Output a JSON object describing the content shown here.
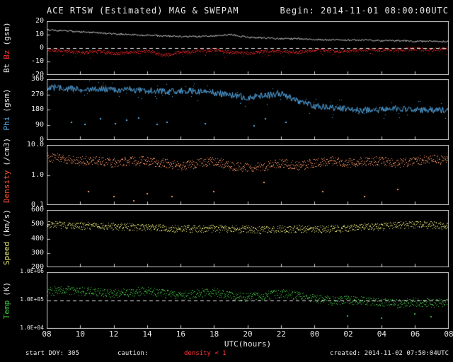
{
  "header": {
    "title": "ACE RTSW (Estimated) MAG & SWEPAM",
    "begin_label": "Begin: 2014-11-01 08:00:00UTC"
  },
  "footer": {
    "start": "start DOY: 305",
    "caution": "caution:",
    "density_warning": "density < 1",
    "created": "created: 2014-11-02 07:50:04UTC"
  },
  "colors": {
    "background": "#000000",
    "frame": "#cfcfcf",
    "text": "#e8e8e8",
    "bt": "#e8e8e8",
    "bz": "#cc2222",
    "bz_label": "#ff3333",
    "phi": "#58b0f0",
    "density": "#ff9966",
    "density_label": "#ff5533",
    "speed": "#e8e878",
    "temp": "#3fbf3f"
  },
  "chart_data": {
    "type": "line",
    "title": "ACE RTSW (Estimated) MAG & SWEPAM",
    "xlabel": "UTC(hours)",
    "x_start_hour": 8,
    "x_span_hours": 24,
    "xtick_labels": [
      "08",
      "10",
      "12",
      "14",
      "16",
      "18",
      "20",
      "22",
      "00",
      "02",
      "04",
      "06",
      "08"
    ],
    "panels": [
      {
        "id": "mag",
        "label_parts": [
          {
            "text": "Bt",
            "color": "#e8e8e8"
          },
          {
            "text": "Bz",
            "color": "#ff3333"
          },
          {
            "text": "(gsm)",
            "color": "#e8e8e8"
          }
        ],
        "scale": "linear",
        "ylim": [
          -20,
          20
        ],
        "yticks": [
          20,
          10,
          0,
          -10,
          -20
        ],
        "ytick_labels": [
          "20",
          "10",
          "0",
          "-10",
          "-20"
        ],
        "dashed_y": 0,
        "series": [
          {
            "name": "Bt",
            "color": "#e8e8e8",
            "style": "line",
            "noise": 0.6,
            "values": [
              13.5,
              13,
              12,
              11.5,
              10.5,
              10,
              9.5,
              9,
              8.5,
              8.5,
              9,
              10,
              8,
              7.5,
              7,
              7,
              6.5,
              6,
              6,
              6,
              5.5,
              5.5,
              5,
              5,
              5
            ]
          },
          {
            "name": "Bz",
            "color": "#cc2222",
            "style": "scatter",
            "density": 2,
            "noise": 1.2,
            "spike_prob": 0.06,
            "spike_mag": -4,
            "values": [
              -1,
              -2,
              -3,
              -2,
              -4,
              -3,
              -2,
              -5,
              -3,
              -2,
              -1,
              -3,
              -4,
              -2,
              -2,
              -3,
              -1,
              -2,
              -2,
              -1,
              -1,
              -1,
              -0.5,
              -1,
              0
            ]
          }
        ]
      },
      {
        "id": "phi",
        "label_parts": [
          {
            "text": "Phi",
            "color": "#58b0f0"
          },
          {
            "text": "(gsm)",
            "color": "#e8e8e8"
          }
        ],
        "scale": "linear",
        "ylim": [
          0,
          360
        ],
        "yticks": [
          360,
          270,
          180,
          90,
          0
        ],
        "ytick_labels": [
          "360",
          "270",
          "180",
          "90",
          "0"
        ],
        "series": [
          {
            "name": "Phi",
            "color": "#58b0f0",
            "style": "line",
            "noise": 20,
            "halo_prob": 0.15,
            "halo_noise": 55,
            "values": [
              310,
              305,
              300,
              302,
              296,
              300,
              292,
              286,
              292,
              286,
              280,
              268,
              252,
              262,
              272,
              232,
              202,
              190,
              182,
              176,
              180,
              186,
              180,
              176,
              180
            ],
            "outliers": [
              [
                9.5,
                110
              ],
              [
                10.3,
                95
              ],
              [
                11.2,
                130
              ],
              [
                12.1,
                100
              ],
              [
                12.8,
                120
              ],
              [
                13.5,
                135
              ],
              [
                14.6,
                95
              ],
              [
                15.2,
                110
              ],
              [
                17.5,
                100
              ],
              [
                20.4,
                90
              ],
              [
                21.1,
                130
              ],
              [
                22.3,
                110
              ]
            ]
          }
        ]
      },
      {
        "id": "density",
        "label_parts": [
          {
            "text": "Density",
            "color": "#ff5533"
          },
          {
            "text": "(/cm3)",
            "color": "#e8e8e8"
          }
        ],
        "scale": "log",
        "ylim": [
          0.1,
          10
        ],
        "yticks": [
          10,
          1,
          0.1
        ],
        "ytick_labels": [
          "10.0",
          "1.0",
          "0.1"
        ],
        "series": [
          {
            "name": "Density",
            "color": "#ff9966",
            "style": "scatter",
            "density": 2,
            "noise_log": 0.15,
            "values": [
              4,
              3.5,
              3,
              3,
              2.5,
              3,
              3,
              2.5,
              2,
              2.5,
              3,
              2,
              1.8,
              2,
              2.5,
              2,
              2.5,
              3,
              2.5,
              3,
              3,
              2.5,
              3,
              3.5,
              3
            ],
            "outliers": [
              [
                10.5,
                0.3
              ],
              [
                12,
                0.2
              ],
              [
                13.2,
                0.15
              ],
              [
                14,
                0.25
              ],
              [
                15.5,
                0.2
              ],
              [
                18,
                0.3
              ],
              [
                21,
                0.6
              ],
              [
                24.5,
                0.3
              ],
              [
                27,
                0.2
              ],
              [
                29,
                0.35
              ]
            ]
          }
        ]
      },
      {
        "id": "speed",
        "label_parts": [
          {
            "text": "Speed",
            "color": "#e8e878"
          },
          {
            "text": "(km/s)",
            "color": "#e8e8e8"
          }
        ],
        "scale": "linear",
        "ylim": [
          200,
          600
        ],
        "yticks": [
          600,
          500,
          400,
          300,
          200
        ],
        "ytick_labels": [
          "600",
          "500",
          "400",
          "300",
          "200"
        ],
        "series": [
          {
            "name": "Speed",
            "color": "#e8e878",
            "style": "scatter",
            "density": 2,
            "noise": 25,
            "values": [
              500,
              495,
              492,
              490,
              486,
              482,
              480,
              476,
              472,
              470,
              474,
              470,
              466,
              462,
              466,
              470,
              466,
              470,
              474,
              480,
              488,
              494,
              500,
              496,
              490
            ]
          }
        ]
      },
      {
        "id": "temp",
        "label_parts": [
          {
            "text": "Temp",
            "color": "#3fbf3f"
          },
          {
            "text": "(K)",
            "color": "#e8e8e8"
          }
        ],
        "scale": "log",
        "ylim": [
          10000,
          1000000
        ],
        "yticks": [
          1000000,
          100000,
          10000
        ],
        "ytick_labels": [
          "1.0E+06",
          "1.0E+05",
          "1.0E+04"
        ],
        "dashed_y": 100000,
        "series": [
          {
            "name": "Temp",
            "color": "#3fbf3f",
            "style": "scatter",
            "density": 2,
            "noise_log": 0.15,
            "values": [
              200000,
              250000,
              220000,
              200000,
              180000,
              200000,
              220000,
              180000,
              150000,
              180000,
              200000,
              150000,
              130000,
              150000,
              180000,
              150000,
              120000,
              100000,
              110000,
              100000,
              90000,
              80000,
              90000,
              85000,
              80000
            ],
            "outliers": [
              [
                26,
                30000
              ],
              [
                28,
                25000
              ],
              [
                30,
                35000
              ],
              [
                31,
                28000
              ]
            ]
          }
        ]
      }
    ]
  }
}
